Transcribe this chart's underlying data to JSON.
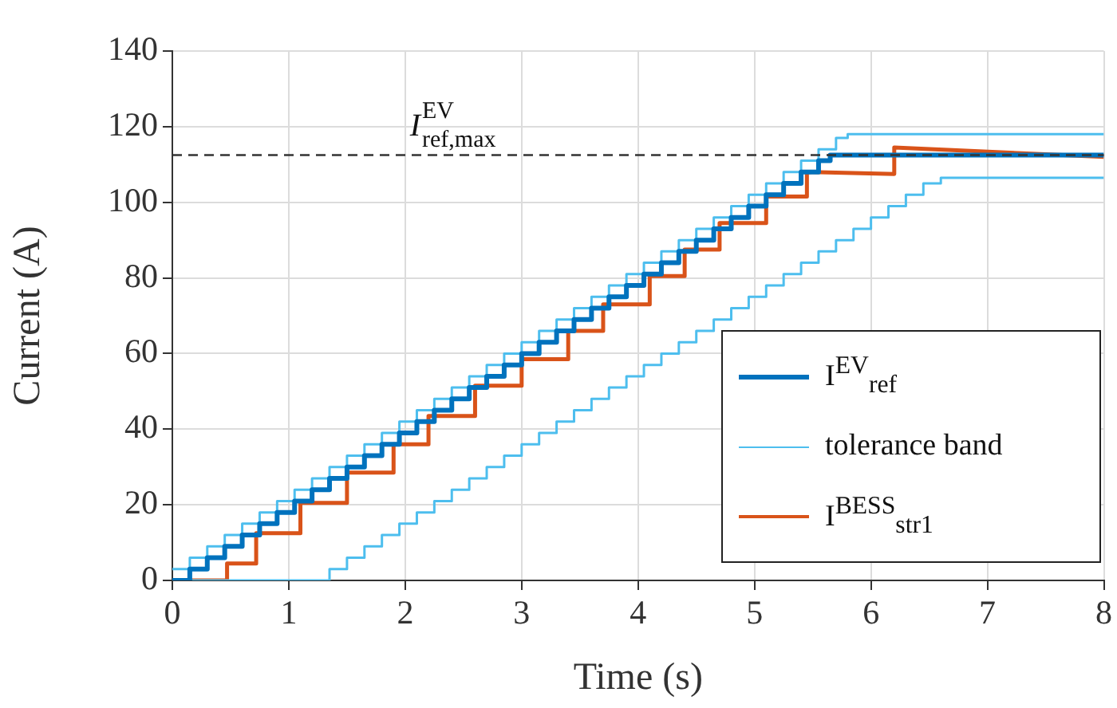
{
  "chart_data": {
    "type": "line",
    "xlabel": "Time (s)",
    "ylabel": "Current (A)",
    "xlim": [
      0,
      8
    ],
    "xticks": [
      0,
      1,
      2,
      3,
      4,
      5,
      6,
      7,
      8
    ],
    "ylim": [
      0,
      140
    ],
    "yticks": [
      0,
      20,
      40,
      60,
      80,
      100,
      120,
      140
    ],
    "grid": true,
    "legend": "bottom right",
    "series": [
      {
        "name": "I$^{EV}$$_{ref}$",
        "type": "step",
        "color": "#0072bd",
        "x": [
          0,
          0.15,
          0.3,
          0.45,
          0.6,
          0.75,
          0.9,
          1.05,
          1.2,
          1.35,
          1.5,
          1.65,
          1.8,
          1.95,
          2.1,
          2.25,
          2.4,
          2.55,
          2.7,
          2.85,
          3,
          3.15,
          3.3,
          3.45,
          3.6,
          3.75,
          3.9,
          4.05,
          4.2,
          4.35,
          4.5,
          4.65,
          4.8,
          4.95,
          5.1,
          5.25,
          5.4,
          5.55,
          5.65,
          8
        ],
        "values": [
          0,
          3,
          6,
          9,
          12,
          15,
          18,
          21,
          24,
          27,
          30,
          33,
          36,
          39,
          42,
          45,
          48,
          51,
          54,
          57,
          60,
          63,
          66,
          69,
          72,
          75,
          78,
          81,
          84,
          87,
          90,
          93,
          96,
          99,
          102,
          105,
          108,
          111,
          112.5,
          112.5
        ]
      },
      {
        "name": "tolerance band",
        "type": "step",
        "color": "#4dbeee",
        "x": [
          0,
          0.15,
          0.3,
          0.45,
          0.6,
          0.75,
          0.9,
          1.05,
          1.2,
          1.35,
          1.5,
          1.65,
          1.8,
          1.95,
          2.1,
          2.25,
          2.4,
          2.55,
          2.7,
          2.85,
          3,
          3.15,
          3.3,
          3.45,
          3.6,
          3.75,
          3.9,
          4.05,
          4.2,
          4.35,
          4.5,
          4.65,
          4.8,
          4.95,
          5.1,
          5.25,
          5.4,
          5.55,
          5.7,
          5.8,
          8
        ],
        "values": [
          3,
          6,
          9,
          12,
          15,
          18,
          21,
          24,
          27,
          30,
          33,
          36,
          39,
          42,
          45,
          48,
          51,
          54,
          57,
          60,
          63,
          66,
          69,
          72,
          75,
          78,
          81,
          84,
          87,
          90,
          93,
          96,
          99,
          102,
          105,
          108,
          111,
          114,
          117,
          118,
          118
        ]
      },
      {
        "type": "step",
        "color": "#4dbeee",
        "x": [
          0,
          1.35,
          1.5,
          1.65,
          1.8,
          1.95,
          2.1,
          2.25,
          2.4,
          2.55,
          2.7,
          2.85,
          3,
          3.15,
          3.3,
          3.45,
          3.6,
          3.75,
          3.9,
          4.05,
          4.2,
          4.35,
          4.5,
          4.65,
          4.8,
          4.95,
          5.1,
          5.25,
          5.4,
          5.55,
          5.7,
          5.85,
          6,
          6.15,
          6.3,
          6.45,
          6.6,
          8
        ],
        "values": [
          0,
          3,
          6,
          9,
          12,
          15,
          18,
          21,
          24,
          27,
          30,
          33,
          36,
          39,
          42,
          45,
          48,
          51,
          54,
          57,
          60,
          63,
          66,
          69,
          72,
          75,
          78,
          81,
          84,
          87,
          90,
          93,
          96,
          99,
          102,
          105,
          106.5,
          106.5
        ]
      },
      {
        "name": "I$^{BESS}$$_{str1}$",
        "type": "line",
        "color": "#d95319",
        "x": [
          0,
          0.47,
          0.47,
          0.72,
          0.72,
          1.1,
          1.1,
          1.5,
          1.5,
          1.9,
          1.9,
          2.2,
          2.2,
          2.6,
          2.6,
          3,
          3,
          3.4,
          3.4,
          3.7,
          3.7,
          4.1,
          4.1,
          4.4,
          4.4,
          4.7,
          4.7,
          5.1,
          5.1,
          5.45,
          5.45,
          6.2,
          6.2,
          8
        ],
        "values": [
          0,
          0,
          4.5,
          4.5,
          12.5,
          12.5,
          20.5,
          20.5,
          28.5,
          28.5,
          36,
          36,
          43.5,
          43.5,
          51.5,
          51.5,
          58.5,
          58.5,
          66,
          66,
          73,
          73,
          80.5,
          80.5,
          87.5,
          87.5,
          94.5,
          94.5,
          101.5,
          101.5,
          108,
          107.5,
          114.5,
          112
        ]
      }
    ],
    "ref_lines": [
      {
        "axis": "y",
        "value": 112.5,
        "label": "I$^{EV}$$_{ref,max}$",
        "color": "#333333",
        "line_style": "dashed"
      }
    ]
  }
}
